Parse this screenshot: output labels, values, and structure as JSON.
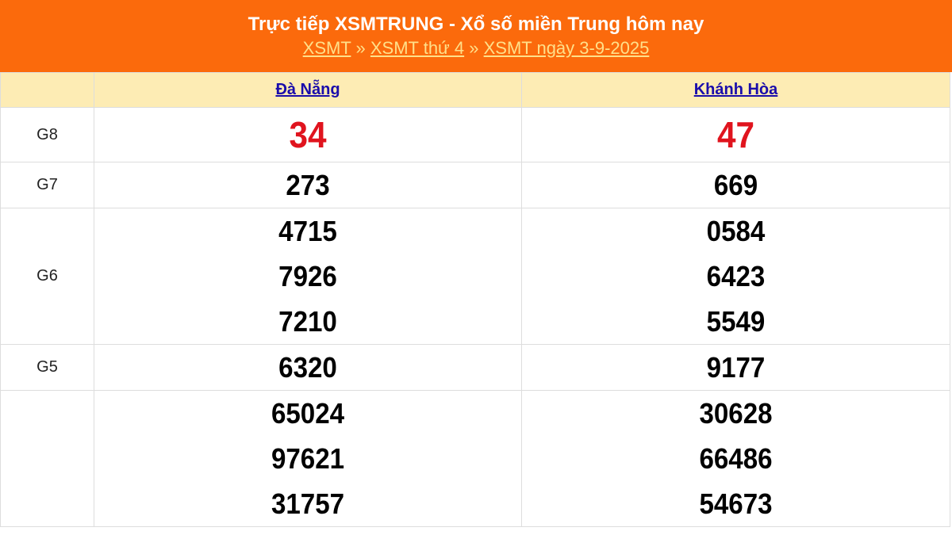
{
  "header": {
    "title": "Trực tiếp XSMTRUNG - Xổ số miền Trung hôm nay",
    "breadcrumb": [
      "XSMT",
      "XSMT thứ 4",
      "XSMT ngày 3-9-2025"
    ],
    "separator": "»"
  },
  "provinces": [
    "Đà Nẵng",
    "Khánh Hòa"
  ],
  "rows": [
    {
      "label": "G8",
      "a": [
        "34"
      ],
      "b": [
        "47"
      ]
    },
    {
      "label": "G7",
      "a": [
        "273"
      ],
      "b": [
        "669"
      ]
    },
    {
      "label": "G6",
      "a": [
        "4715",
        "7926",
        "7210"
      ],
      "b": [
        "0584",
        "6423",
        "5549"
      ]
    },
    {
      "label": "G5",
      "a": [
        "6320"
      ],
      "b": [
        "9177"
      ]
    },
    {
      "label": "",
      "a": [
        "65024",
        "97621",
        "31757"
      ],
      "b": [
        "30628",
        "66486",
        "54673"
      ]
    }
  ],
  "colors": {
    "header": "#fb6a0c",
    "special": "#e0141e",
    "province_row": "#fdecb4"
  }
}
